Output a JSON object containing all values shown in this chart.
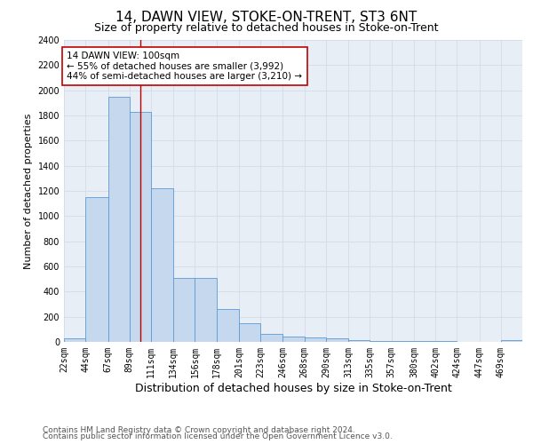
{
  "title": "14, DAWN VIEW, STOKE-ON-TRENT, ST3 6NT",
  "subtitle": "Size of property relative to detached houses in Stoke-on-Trent",
  "xlabel": "Distribution of detached houses by size in Stoke-on-Trent",
  "ylabel": "Number of detached properties",
  "bin_labels": [
    "22sqm",
    "44sqm",
    "67sqm",
    "89sqm",
    "111sqm",
    "134sqm",
    "156sqm",
    "178sqm",
    "201sqm",
    "223sqm",
    "246sqm",
    "268sqm",
    "290sqm",
    "313sqm",
    "335sqm",
    "357sqm",
    "380sqm",
    "402sqm",
    "424sqm",
    "447sqm",
    "469sqm"
  ],
  "bar_values": [
    30,
    1150,
    1950,
    1830,
    1220,
    510,
    510,
    260,
    145,
    65,
    40,
    35,
    30,
    15,
    10,
    8,
    5,
    4,
    3,
    2,
    15
  ],
  "bin_edges": [
    22,
    44,
    67,
    89,
    111,
    134,
    156,
    178,
    201,
    223,
    246,
    268,
    290,
    313,
    335,
    357,
    380,
    402,
    424,
    447,
    469,
    491
  ],
  "bar_color": "#c5d8ed",
  "bar_edge_color": "#5b9bd5",
  "vline_x": 100,
  "vline_color": "#c00000",
  "annotation_text": "14 DAWN VIEW: 100sqm\n← 55% of detached houses are smaller (3,992)\n44% of semi-detached houses are larger (3,210) →",
  "annotation_box_color": "white",
  "annotation_box_edge": "#c00000",
  "ylim": [
    0,
    2400
  ],
  "yticks": [
    0,
    200,
    400,
    600,
    800,
    1000,
    1200,
    1400,
    1600,
    1800,
    2000,
    2200,
    2400
  ],
  "grid_color": "#d0d8e8",
  "background_color": "#e8eef5",
  "footer_line1": "Contains HM Land Registry data © Crown copyright and database right 2024.",
  "footer_line2": "Contains public sector information licensed under the Open Government Licence v3.0.",
  "title_fontsize": 11,
  "subtitle_fontsize": 9,
  "xlabel_fontsize": 9,
  "ylabel_fontsize": 8,
  "tick_fontsize": 7,
  "annotation_fontsize": 7.5,
  "footer_fontsize": 6.5
}
